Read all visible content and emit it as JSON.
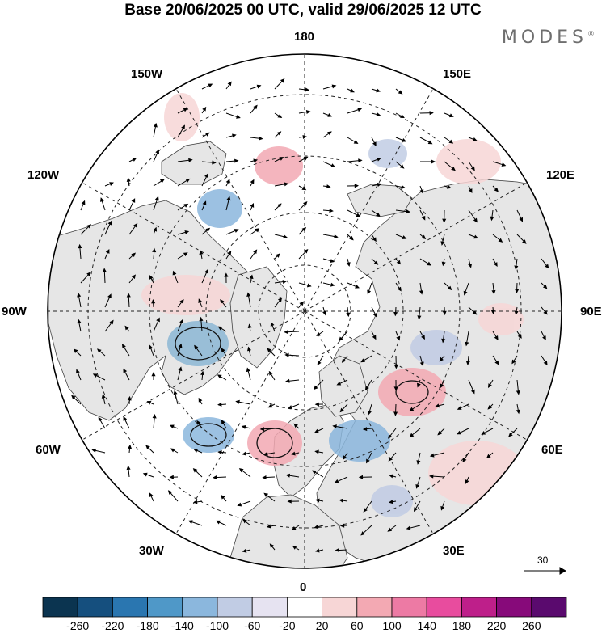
{
  "header": {
    "title": "Base 20/06/2025 00 UTC, valid 29/06/2025 12 UTC",
    "brand": "MODES",
    "brand_mark": "®"
  },
  "map": {
    "projection": "north-polar-stereographic",
    "labels": {
      "top": "180",
      "bottom": "0",
      "left": "90W",
      "right": "90E",
      "w150": "150W",
      "e150": "150E",
      "w120": "120W",
      "e120": "120E",
      "w60": "60W",
      "e60": "60E",
      "w30": "30W",
      "e30": "30E"
    },
    "wind_reference": "30",
    "colors": {
      "land": "#e6e6e6",
      "ocean": "#ffffff",
      "coast": "#444444",
      "grid": "#222222"
    }
  },
  "colorbar": {
    "labels": [
      "-260",
      "-220",
      "-180",
      "-140",
      "-100",
      "-60",
      "-20",
      "20",
      "60",
      "100",
      "140",
      "180",
      "220",
      "260"
    ],
    "colors": [
      "#0b3450",
      "#154f7e",
      "#2a76b0",
      "#4f98c8",
      "#8bb7dd",
      "#c1cce4",
      "#e6e3f1",
      "#ffffff",
      "#f7d6d6",
      "#f3a9b3",
      "#ed7aa4",
      "#e84c9e",
      "#be1f8a",
      "#870a7a",
      "#5a0a6e"
    ]
  }
}
